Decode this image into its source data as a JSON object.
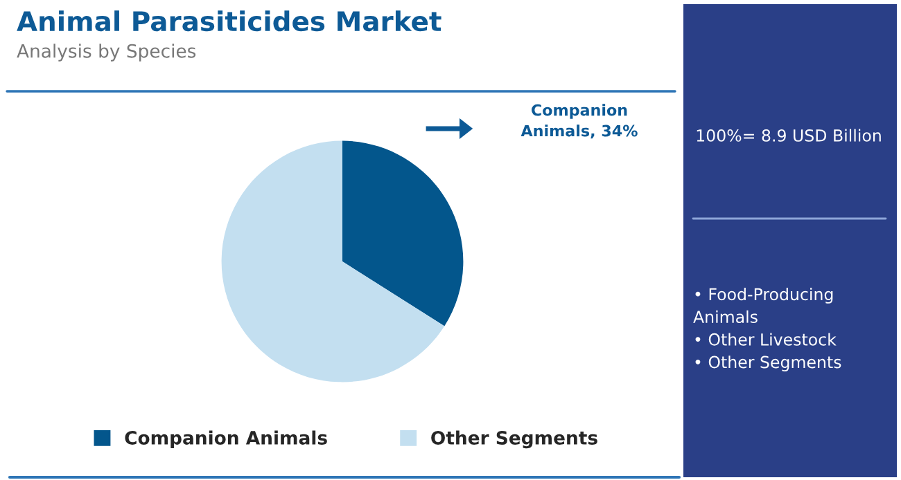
{
  "chart_data": {
    "type": "pie",
    "title": "Animal Parasiticides Market",
    "subtitle": "Analysis by Species",
    "categories": [
      "Companion Animals",
      "Other Segments"
    ],
    "values": [
      34,
      66
    ],
    "colors": [
      "#03568c",
      "#c3dff0"
    ],
    "value_labels": [
      "Companion Animals, 34%",
      null
    ],
    "legend": "bottom",
    "annotations": [
      "100%= 8.9 USD Billion",
      "• Food-Producing\nAnimals\n• Other Livestock\n• Other Segments"
    ]
  }
}
